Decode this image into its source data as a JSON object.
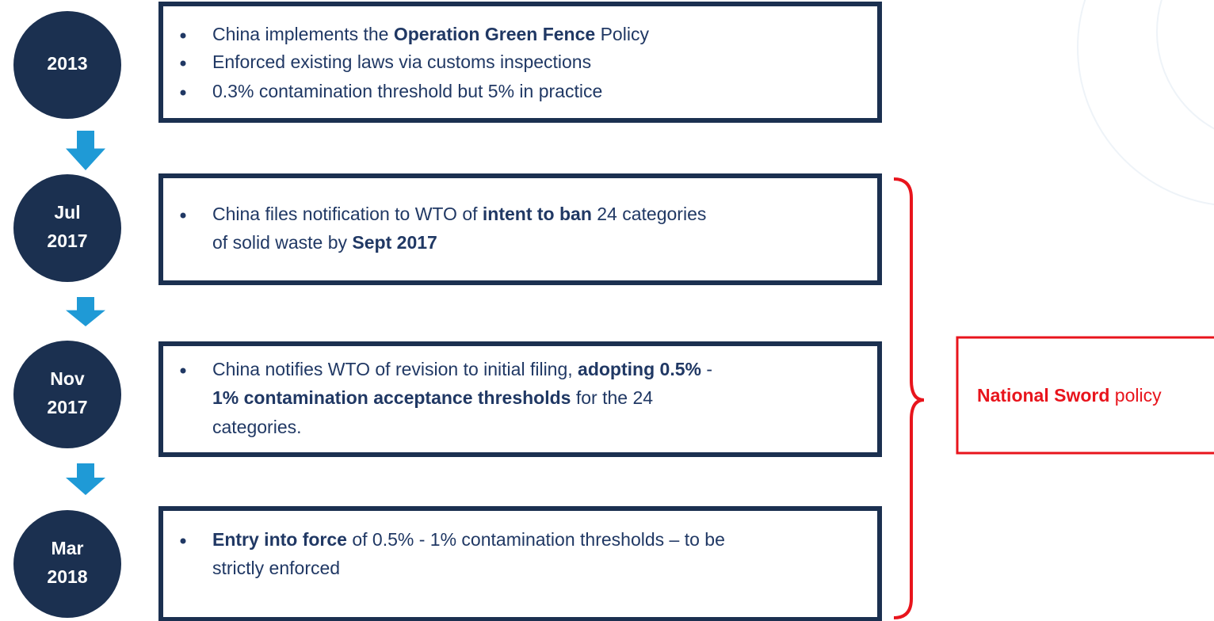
{
  "timeline": [
    {
      "date": [
        "2013"
      ],
      "bullets": [
        [
          [
            {
              "text": "China implements the ",
              "bold": false
            },
            {
              "text": "Operation Green Fence",
              "bold": true
            },
            {
              "text": " Policy",
              "bold": false
            }
          ]
        ],
        [
          [
            {
              "text": "Enforced existing laws via customs inspections",
              "bold": false
            }
          ]
        ],
        [
          [
            {
              "text": "0.3% contamination threshold but 5% in practice",
              "bold": false
            }
          ]
        ]
      ]
    },
    {
      "date": [
        "Jul",
        "2017"
      ],
      "bullets": [
        [
          [
            {
              "text": "China files notification to WTO of ",
              "bold": false
            },
            {
              "text": "intent to ban",
              "bold": true
            },
            {
              "text": " 24 categories",
              "bold": false
            }
          ],
          [
            {
              "text": "of solid waste by ",
              "bold": false
            },
            {
              "text": "Sept 2017",
              "bold": true
            }
          ]
        ]
      ]
    },
    {
      "date": [
        "Nov",
        "2017"
      ],
      "bullets": [
        [
          [
            {
              "text": "China notifies WTO of revision to initial filing, ",
              "bold": false
            },
            {
              "text": "adopting 0.5%",
              "bold": true
            },
            {
              "text": " -",
              "bold": false
            }
          ],
          [
            {
              "text": "1% contamination acceptance thresholds",
              "bold": true
            },
            {
              "text": " for the 24",
              "bold": false
            }
          ],
          [
            {
              "text": "categories.",
              "bold": false
            }
          ]
        ]
      ]
    },
    {
      "date": [
        "Mar",
        "2018"
      ],
      "bullets": [
        [
          [
            {
              "text": "Entry into force",
              "bold": true
            },
            {
              "text": " of 0.5% - 1% contamination thresholds – to be",
              "bold": false
            }
          ],
          [
            {
              "text": "strictly enforced",
              "bold": false
            }
          ]
        ]
      ]
    }
  ],
  "bracket_label": [
    {
      "text": "National Sword",
      "bold": true
    },
    {
      "text": " policy",
      "bold": false
    }
  ]
}
